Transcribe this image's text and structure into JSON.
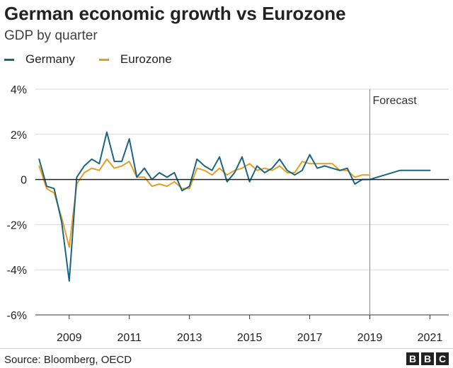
{
  "title": "German economic growth vs Eurozone",
  "subtitle": "GDP by quarter",
  "source": "Source: Bloomberg, OECD",
  "logo": [
    "B",
    "B",
    "C"
  ],
  "chart_data": {
    "type": "line",
    "y_tick_labels": [
      "4%",
      "2%",
      "0",
      "-2%",
      "-4%",
      "-6%"
    ],
    "y_ticks": [
      4,
      2,
      0,
      -2,
      -4,
      -6
    ],
    "ylim": [
      -6,
      4
    ],
    "x_tick_labels": [
      "2009",
      "2011",
      "2013",
      "2015",
      "2017",
      "2019",
      "2021"
    ],
    "x_ticks": [
      2009,
      2011,
      2013,
      2015,
      2017,
      2019,
      2021
    ],
    "xlim": [
      2007.875,
      2021.625
    ],
    "grid": "horizontal",
    "legend_position": "top-left",
    "annotation": {
      "label": "Forecast",
      "x": 2019.0
    },
    "series": [
      {
        "name": "Germany",
        "color": "#1c6483",
        "x": [
          2008.0,
          2008.25,
          2008.5,
          2008.75,
          2009.0,
          2009.25,
          2009.5,
          2009.75,
          2010.0,
          2010.25,
          2010.5,
          2010.75,
          2011.0,
          2011.25,
          2011.5,
          2011.75,
          2012.0,
          2012.25,
          2012.5,
          2012.75,
          2013.0,
          2013.25,
          2013.5,
          2013.75,
          2014.0,
          2014.25,
          2014.5,
          2014.75,
          2015.0,
          2015.25,
          2015.5,
          2015.75,
          2016.0,
          2016.25,
          2016.5,
          2016.75,
          2017.0,
          2017.25,
          2017.5,
          2017.75,
          2018.0,
          2018.25,
          2018.5,
          2018.75,
          2019.0,
          2019.5,
          2020.0,
          2020.5,
          2021.0
        ],
        "values": [
          0.9,
          -0.3,
          -0.4,
          -1.9,
          -4.5,
          0.1,
          0.6,
          0.9,
          0.7,
          2.1,
          0.8,
          0.8,
          1.8,
          0.1,
          0.5,
          0.0,
          0.3,
          0.1,
          0.3,
          -0.5,
          -0.3,
          0.9,
          0.6,
          0.4,
          1.0,
          -0.1,
          0.3,
          1.0,
          -0.1,
          0.6,
          0.3,
          0.5,
          0.9,
          0.4,
          0.2,
          0.4,
          1.1,
          0.5,
          0.6,
          0.5,
          0.4,
          0.5,
          -0.2,
          0.0,
          0.0,
          0.2,
          0.4,
          0.4,
          0.4
        ]
      },
      {
        "name": "Eurozone",
        "color": "#e69e22",
        "x": [
          2008.0,
          2008.25,
          2008.5,
          2008.75,
          2009.0,
          2009.25,
          2009.5,
          2009.75,
          2010.0,
          2010.25,
          2010.5,
          2010.75,
          2011.0,
          2011.25,
          2011.5,
          2011.75,
          2012.0,
          2012.25,
          2012.5,
          2012.75,
          2013.0,
          2013.25,
          2013.5,
          2013.75,
          2014.0,
          2014.25,
          2014.5,
          2014.75,
          2015.0,
          2015.25,
          2015.5,
          2015.75,
          2016.0,
          2016.25,
          2016.5,
          2016.75,
          2017.0,
          2017.25,
          2017.5,
          2017.75,
          2018.0,
          2018.25,
          2018.5,
          2018.75,
          2019.0
        ],
        "values": [
          0.6,
          -0.4,
          -0.6,
          -1.7,
          -3.0,
          -0.2,
          0.3,
          0.5,
          0.4,
          0.9,
          0.5,
          0.6,
          0.8,
          0.1,
          0.1,
          -0.3,
          -0.2,
          -0.3,
          -0.1,
          -0.4,
          -0.4,
          0.5,
          0.4,
          0.2,
          0.5,
          0.2,
          0.4,
          0.5,
          0.7,
          0.4,
          0.5,
          0.4,
          0.6,
          0.3,
          0.3,
          0.8,
          0.7,
          0.7,
          0.7,
          0.7,
          0.4,
          0.4,
          0.1,
          0.2,
          0.2
        ]
      }
    ]
  }
}
